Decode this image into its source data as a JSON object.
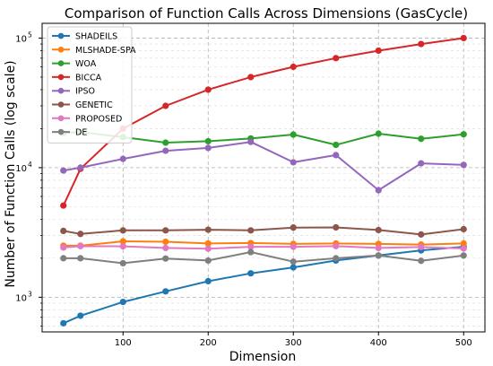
{
  "chart_data": {
    "type": "line",
    "title": "Comparison of Function Calls Across Dimensions (GasCycle)",
    "xlabel": "Dimension",
    "ylabel": "Number of Function Calls (log scale)",
    "yscale": "log",
    "xlim": [
      5,
      525
    ],
    "ylim": [
      540,
      130000
    ],
    "grid": true,
    "legend_position": "top-left",
    "x": [
      30,
      50,
      100,
      150,
      200,
      250,
      300,
      350,
      400,
      450,
      500
    ],
    "xticks": [
      100,
      200,
      300,
      400,
      500
    ],
    "yticks": [
      {
        "value": 1000,
        "base": "10",
        "exp": "3"
      },
      {
        "value": 10000,
        "base": "10",
        "exp": "4"
      },
      {
        "value": 100000,
        "base": "10",
        "exp": "5"
      }
    ],
    "series": [
      {
        "name": "SHADEILS",
        "color": "#1f77b4",
        "values": [
          630,
          720,
          920,
          1110,
          1330,
          1530,
          1700,
          1920,
          2100,
          2300,
          2450
        ]
      },
      {
        "name": "MLSHADE-SPA",
        "color": "#ff7f0e",
        "values": [
          2500,
          2500,
          2700,
          2680,
          2600,
          2620,
          2580,
          2600,
          2580,
          2550,
          2600
        ]
      },
      {
        "name": "WOA",
        "color": "#2ca02c",
        "values": [
          18500,
          18800,
          17200,
          15600,
          16000,
          16800,
          18000,
          15000,
          18300,
          16700,
          18100
        ]
      },
      {
        "name": "BICCA",
        "color": "#d62728",
        "values": [
          5100,
          9800,
          20000,
          30000,
          40000,
          50000,
          60000,
          70000,
          80000,
          90000,
          100000
        ]
      },
      {
        "name": "IPSO",
        "color": "#9467bd",
        "values": [
          9500,
          10000,
          11700,
          13500,
          14200,
          15800,
          11000,
          12500,
          6700,
          10800,
          10500
        ]
      },
      {
        "name": "GENETIC",
        "color": "#8c564b",
        "values": [
          3250,
          3080,
          3280,
          3280,
          3320,
          3280,
          3450,
          3460,
          3300,
          3050,
          3350
        ]
      },
      {
        "name": "PROPOSED",
        "color": "#e377c2",
        "values": [
          2420,
          2480,
          2470,
          2400,
          2370,
          2450,
          2450,
          2480,
          2400,
          2440,
          2380
        ]
      },
      {
        "name": "DE",
        "color": "#7f7f7f",
        "values": [
          2000,
          2000,
          1830,
          1990,
          1920,
          2230,
          1880,
          2000,
          2100,
          1910,
          2100
        ]
      }
    ]
  }
}
